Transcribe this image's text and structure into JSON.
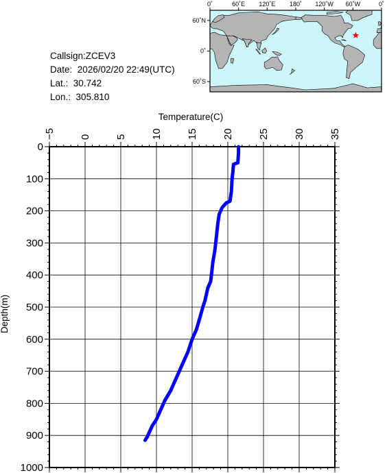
{
  "station": {
    "callsign_label": "Callsign:",
    "callsign": "ZCEV3",
    "date_label": "Date:",
    "date": "2026/02/20 22:49(UTC)",
    "lat_label": "Lat.:",
    "lat": "30.742",
    "lon_label": "Lon.:",
    "lon": "305.810"
  },
  "map": {
    "x_ticks": [
      "0˚",
      "60˚E",
      "120˚E",
      "180˚",
      "120˚W",
      "60˚W",
      "0˚"
    ],
    "y_ticks": [
      "60˚N",
      "0˚",
      "60˚S"
    ],
    "ocean_color": "#cdf6fb",
    "land_color": "#b4b4b4",
    "marker_color": "#ff0000",
    "marker_lon": 305.81,
    "marker_lat": 30.742
  },
  "chart_data": {
    "type": "line",
    "xlabel": "Temperature(C)",
    "ylabel": "Depth(m)",
    "xlim": [
      -5,
      35
    ],
    "ylim": [
      0,
      1000
    ],
    "x_ticks": [
      -5,
      0,
      5,
      10,
      15,
      20,
      25,
      30,
      35
    ],
    "y_ticks": [
      0,
      100,
      200,
      300,
      400,
      500,
      600,
      700,
      800,
      900,
      1000
    ],
    "line_color": "#0000ff",
    "series": [
      {
        "points": [
          [
            21.5,
            0
          ],
          [
            21.5,
            20
          ],
          [
            21.4,
            50
          ],
          [
            20.8,
            55
          ],
          [
            20.7,
            80
          ],
          [
            20.6,
            100
          ],
          [
            20.5,
            140
          ],
          [
            20.3,
            170
          ],
          [
            19.8,
            175
          ],
          [
            19.2,
            190
          ],
          [
            18.8,
            210
          ],
          [
            18.6,
            240
          ],
          [
            18.4,
            280
          ],
          [
            18.2,
            320
          ],
          [
            17.9,
            360
          ],
          [
            17.7,
            400
          ],
          [
            17.6,
            420
          ],
          [
            17.2,
            440
          ],
          [
            16.8,
            480
          ],
          [
            16.5,
            500
          ],
          [
            16.0,
            540
          ],
          [
            15.6,
            570
          ],
          [
            15.0,
            600
          ],
          [
            14.4,
            640
          ],
          [
            13.6,
            680
          ],
          [
            12.8,
            720
          ],
          [
            12.0,
            760
          ],
          [
            11.2,
            790
          ],
          [
            10.6,
            820
          ],
          [
            10.0,
            850
          ],
          [
            9.4,
            870
          ],
          [
            9.0,
            890
          ],
          [
            8.7,
            905
          ],
          [
            8.4,
            915
          ]
        ]
      }
    ]
  }
}
